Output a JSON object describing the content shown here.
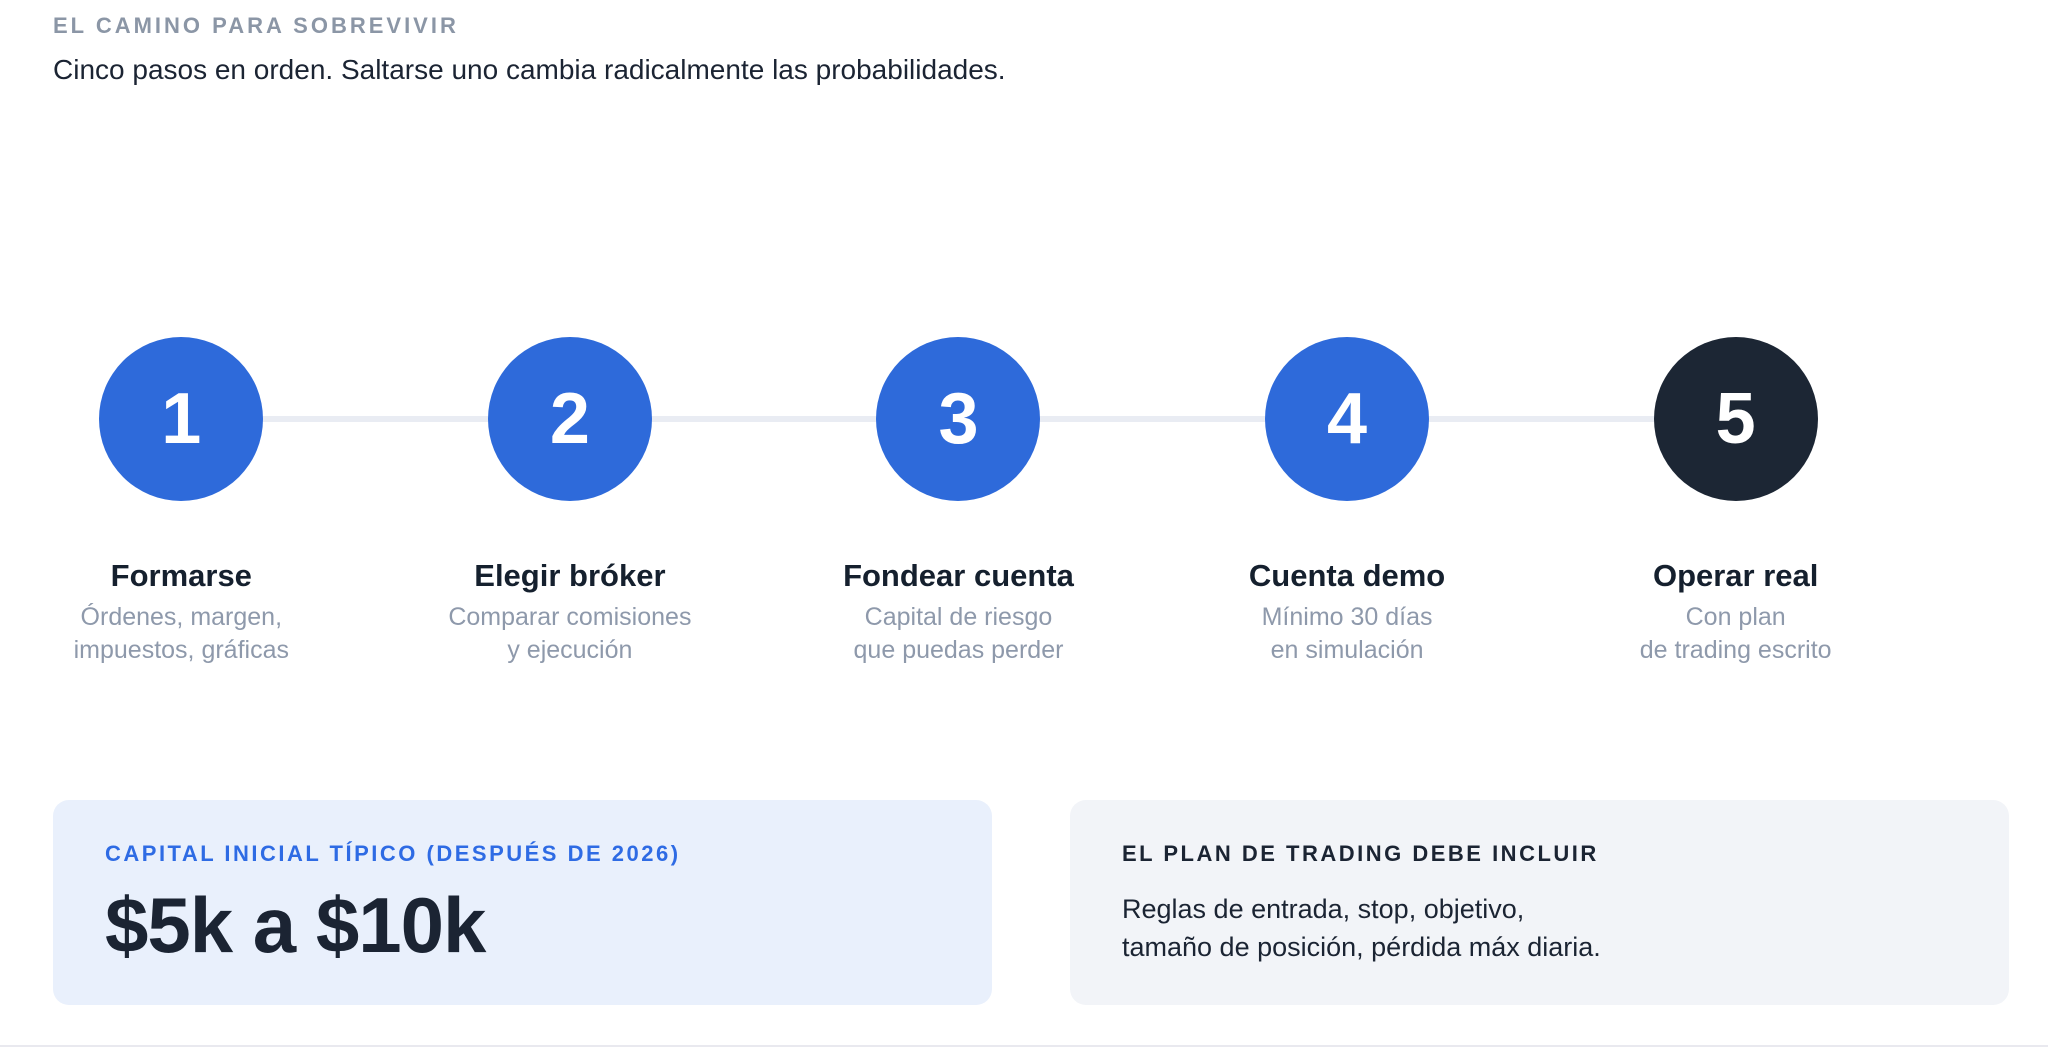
{
  "colors": {
    "accent_blue": "#2e6ada",
    "dark_navy": "#1c2634",
    "muted_gray": "#8b96a6",
    "connector": "#e9ecf3",
    "capital_card_bg": "#e9f0fc",
    "capital_card_label": "#2e6be4",
    "plan_card_bg": "#f2f4f8",
    "plan_card_label": "#1b2433"
  },
  "header": {
    "eyebrow": "EL CAMINO PARA SOBREVIVIR",
    "subtitle": "Cinco pasos en orden. Saltarse uno cambia radicalmente las probabilidades."
  },
  "steps": [
    {
      "number": "1",
      "title": "Formarse",
      "desc_line1": "Órdenes, margen,",
      "desc_line2": "impuestos, gráficas",
      "circle_color": "#2e6ada"
    },
    {
      "number": "2",
      "title": "Elegir bróker",
      "desc_line1": "Comparar comisiones",
      "desc_line2": "y ejecución",
      "circle_color": "#2e6ada"
    },
    {
      "number": "3",
      "title": "Fondear cuenta",
      "desc_line1": "Capital de riesgo",
      "desc_line2": "que puedas perder",
      "circle_color": "#2e6ada"
    },
    {
      "number": "4",
      "title": "Cuenta demo",
      "desc_line1": "Mínimo 30 días",
      "desc_line2": "en simulación",
      "circle_color": "#2e6ada"
    },
    {
      "number": "5",
      "title": "Operar real",
      "desc_line1": "Con plan",
      "desc_line2": "de trading escrito",
      "circle_color": "#1c2634"
    }
  ],
  "capital_card": {
    "label": "CAPITAL INICIAL TÍPICO (DESPUÉS DE 2026)",
    "value": "$5k a $10k"
  },
  "plan_card": {
    "label": "EL PLAN DE TRADING DEBE INCLUIR",
    "body_line1": "Reglas de entrada, stop, objetivo,",
    "body_line2": "tamaño de posición, pérdida máx diaria."
  }
}
